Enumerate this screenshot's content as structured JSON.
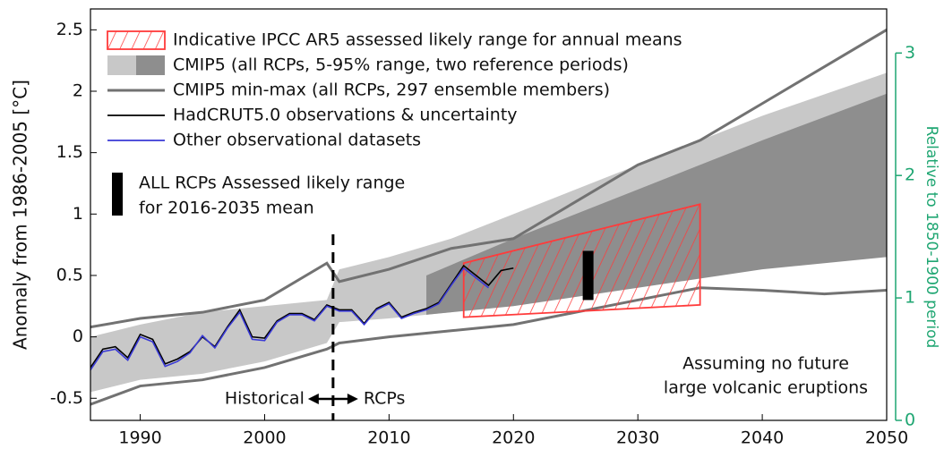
{
  "chart_data": {
    "type": "line",
    "y_label": "Anomaly from 1986-2005  [°C]",
    "y2_label": "Relative to 1850-1900 period",
    "xlim": [
      1986,
      2050
    ],
    "xticks": [
      1990,
      2000,
      2010,
      2020,
      2030,
      2040,
      2050
    ],
    "ylim": [
      -0.68,
      2.67
    ],
    "yticks": [
      -0.5,
      0,
      0.5,
      1,
      1.5,
      2,
      2.5
    ],
    "y2lim": [
      0,
      3.36
    ],
    "y2ticks": [
      0,
      1,
      2,
      3
    ],
    "y2_color": "#1fa672",
    "grid": false,
    "series": [
      {
        "name": "Indicative IPCC AR5 assessed likely range for annual means",
        "kind": "polygon",
        "color": "#ff3b3b",
        "x": [
          2016,
          2035
        ],
        "lower": [
          0.16,
          0.26
        ],
        "upper": [
          0.6,
          1.08
        ]
      },
      {
        "name": "CMIP5 (all RCPs, 5-95% range, two reference periods)",
        "kind": "bands",
        "bands": [
          {
            "color": "#c8c8c8",
            "x": [
              1986,
              1990,
              1995,
              2000,
              2005,
              2006,
              2010,
              2015,
              2020,
              2030,
              2040,
              2050
            ],
            "lower": [
              -0.45,
              -0.35,
              -0.3,
              -0.2,
              -0.05,
              0.12,
              0.15,
              0.2,
              0.3,
              0.45,
              0.6,
              0.68
            ],
            "upper": [
              0.0,
              0.1,
              0.2,
              0.25,
              0.3,
              0.55,
              0.65,
              0.8,
              1.0,
              1.4,
              1.8,
              2.15
            ]
          },
          {
            "color": "#8e8e8e",
            "x": [
              2013,
              2020,
              2030,
              2040,
              2050
            ],
            "lower": [
              0.18,
              0.25,
              0.4,
              0.55,
              0.65
            ],
            "upper": [
              0.5,
              0.8,
              1.2,
              1.6,
              1.98
            ]
          }
        ]
      },
      {
        "name": "CMIP5 min-max (all RCPs, 297 ensemble members)",
        "kind": "minmax",
        "color": "#727272",
        "x": [
          1986,
          1990,
          1995,
          2000,
          2005,
          2006,
          2010,
          2015,
          2020,
          2025,
          2030,
          2035,
          2040,
          2045,
          2050
        ],
        "lower": [
          -0.55,
          -0.4,
          -0.35,
          -0.25,
          -0.1,
          -0.05,
          0.0,
          0.05,
          0.1,
          0.2,
          0.3,
          0.4,
          0.38,
          0.35,
          0.38
        ],
        "upper": [
          0.08,
          0.15,
          0.2,
          0.3,
          0.6,
          0.45,
          0.55,
          0.72,
          0.8,
          1.1,
          1.4,
          1.6,
          1.9,
          2.2,
          2.5
        ]
      },
      {
        "name": "HadCRUT5.0 observations & uncertainty",
        "kind": "line",
        "color": "#000000",
        "x": [
          1986,
          1987,
          1988,
          1989,
          1990,
          1991,
          1992,
          1993,
          1994,
          1995,
          1996,
          1997,
          1998,
          1999,
          2000,
          2001,
          2002,
          2003,
          2004,
          2005,
          2006,
          2007,
          2008,
          2009,
          2010,
          2011,
          2012,
          2013,
          2014,
          2015,
          2016,
          2017,
          2018,
          2019,
          2020
        ],
        "values": [
          -0.25,
          -0.1,
          -0.08,
          -0.17,
          0.02,
          -0.02,
          -0.22,
          -0.18,
          -0.12,
          0.0,
          -0.08,
          0.08,
          0.22,
          0.0,
          -0.01,
          0.13,
          0.19,
          0.19,
          0.14,
          0.26,
          0.22,
          0.22,
          0.11,
          0.23,
          0.28,
          0.16,
          0.2,
          0.23,
          0.28,
          0.43,
          0.58,
          0.5,
          0.42,
          0.54,
          0.56
        ]
      },
      {
        "name": "Other observational datasets",
        "kind": "line",
        "color": "#3a3ad6",
        "x": [
          1986,
          1987,
          1988,
          1989,
          1990,
          1991,
          1992,
          1993,
          1994,
          1995,
          1996,
          1997,
          1998,
          1999,
          2000,
          2001,
          2002,
          2003,
          2004,
          2005,
          2006,
          2007,
          2008,
          2009,
          2010,
          2011,
          2012,
          2013,
          2014,
          2015,
          2016,
          2017,
          2018,
          2019,
          2020
        ],
        "values": [
          -0.27,
          -0.12,
          -0.1,
          -0.19,
          0.0,
          -0.04,
          -0.24,
          -0.2,
          -0.13,
          0.01,
          -0.09,
          0.07,
          0.2,
          -0.02,
          -0.03,
          0.12,
          0.18,
          0.18,
          0.13,
          0.25,
          0.21,
          0.21,
          0.1,
          0.22,
          0.27,
          0.15,
          0.19,
          0.22,
          0.27,
          0.42,
          0.56,
          0.48,
          0.4,
          null,
          null
        ]
      }
    ],
    "assessed_range": {
      "label_lines": [
        "ALL RCPs Assessed likely range",
        "for 2016-2035 mean"
      ],
      "color": "#000000",
      "x": 2026,
      "lower": 0.3,
      "upper": 0.7
    },
    "divider_x": 2005.5,
    "period_labels": [
      "Historical",
      "RCPs"
    ],
    "note_lines": [
      "Assuming no future",
      "large volcanic eruptions"
    ]
  }
}
